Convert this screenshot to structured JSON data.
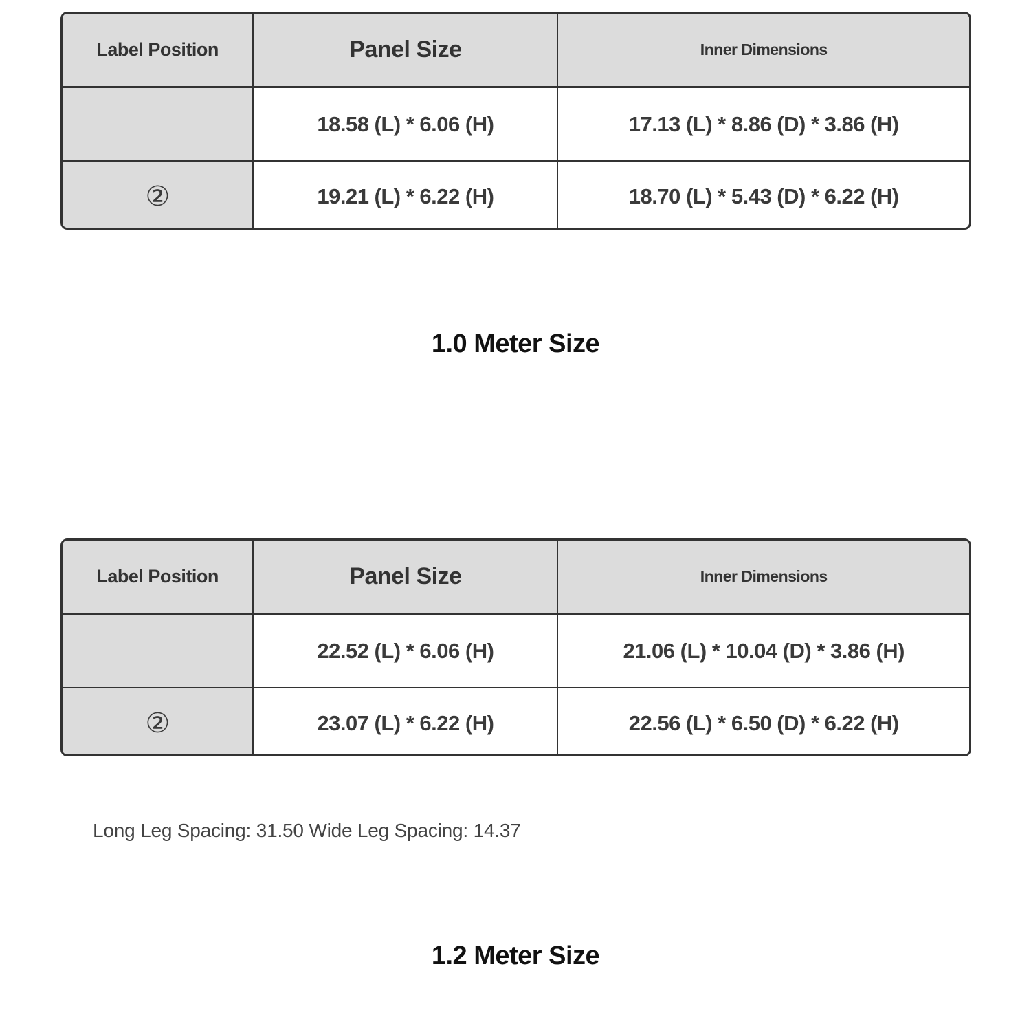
{
  "colors": {
    "header_bg": "#dcdcdc",
    "label_column_bg": "#dcdcdc",
    "data_cell_bg": "#ffffff",
    "border": "#333333",
    "text": "#3a3a3a",
    "title_text": "#111111",
    "note_text": "#444444"
  },
  "sections": [
    {
      "title": "1.0 Meter Size",
      "table": {
        "columns": [
          "Label Position",
          "Panel Size",
          "Inner Dimensions"
        ],
        "rows": [
          {
            "label": "",
            "panel_size": "18.58 (L) * 6.06 (H)",
            "inner_dimensions": "17.13 (L) * 8.86 (D) * 3.86 (H)"
          },
          {
            "label": "②",
            "panel_size": "19.21 (L) * 6.22 (H)",
            "inner_dimensions": "18.70 (L) * 5.43 (D) * 6.22 (H)"
          }
        ]
      }
    },
    {
      "title": "1.2 Meter Size",
      "note": "Long Leg Spacing: 31.50 Wide Leg Spacing: 14.37",
      "table": {
        "columns": [
          "Label Position",
          "Panel Size",
          "Inner Dimensions"
        ],
        "rows": [
          {
            "label": "",
            "panel_size": "22.52 (L) * 6.06 (H)",
            "inner_dimensions": "21.06 (L) * 10.04 (D) * 3.86 (H)"
          },
          {
            "label": "②",
            "panel_size": "23.07 (L) * 6.22 (H)",
            "inner_dimensions": "22.56 (L) * 6.50 (D) * 6.22 (H)"
          }
        ]
      }
    }
  ]
}
